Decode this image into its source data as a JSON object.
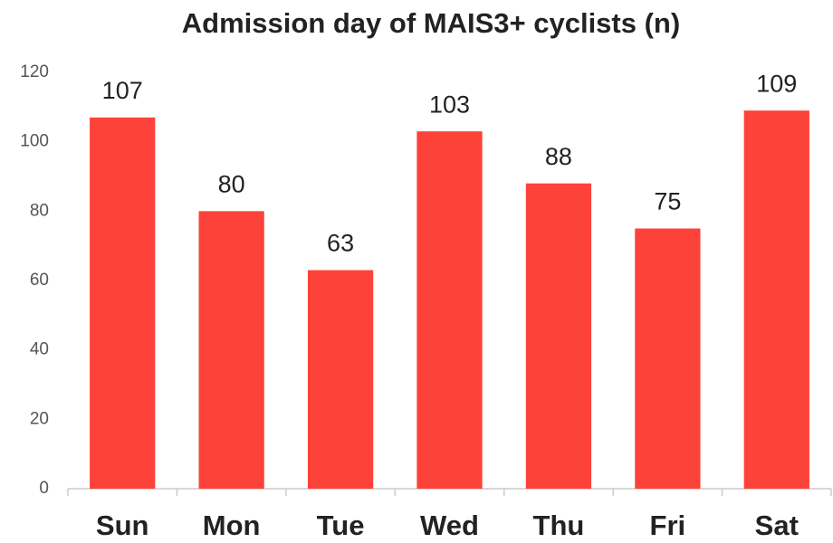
{
  "chart_data": {
    "type": "bar",
    "title": "Admission day of MAIS3+ cyclists (n)",
    "categories": [
      "Sun",
      "Mon",
      "Tue",
      "Wed",
      "Thu",
      "Fri",
      "Sat"
    ],
    "values": [
      107,
      80,
      63,
      103,
      88,
      75,
      109
    ],
    "color": "#fd4239",
    "ylim": [
      0,
      120
    ],
    "yticks": [
      0,
      20,
      40,
      60,
      80,
      100,
      120
    ],
    "grid": false
  }
}
